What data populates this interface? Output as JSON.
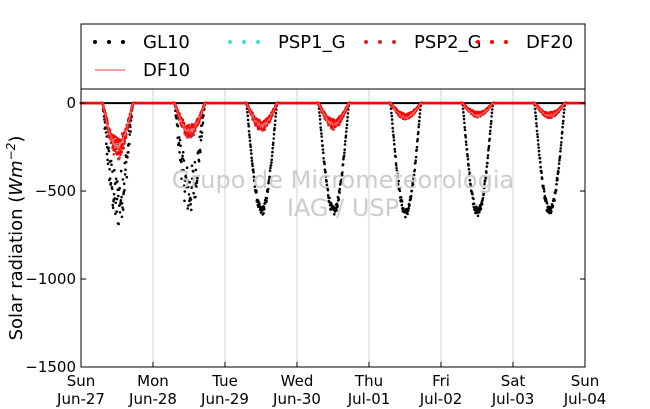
{
  "chart_data": {
    "type": "scatter",
    "title": "",
    "ylabel": "Solar radiation (Wm⁻²)",
    "ylabel_parts": {
      "prefix": "Solar radiation (",
      "unit_base": "Wm",
      "unit_exp": "−2",
      "suffix": ")"
    },
    "ylim": [
      -1500,
      80
    ],
    "yticks": [
      0,
      -500,
      -1000,
      -1500
    ],
    "ytick_labels": [
      "0",
      "−500",
      "−1000",
      "−1500"
    ],
    "xlim_days": [
      0,
      7
    ],
    "xticks": [
      {
        "day": 0,
        "line1": "Sun",
        "line2": "Jun-27"
      },
      {
        "day": 1,
        "line1": "Mon",
        "line2": "Jun-28"
      },
      {
        "day": 2,
        "line1": "Tue",
        "line2": "Jun-29"
      },
      {
        "day": 3,
        "line1": "Wed",
        "line2": "Jun-30"
      },
      {
        "day": 4,
        "line1": "Thu",
        "line2": "Jul-01"
      },
      {
        "day": 5,
        "line1": "Fri",
        "line2": "Jul-02"
      },
      {
        "day": 6,
        "line1": "Sat",
        "line2": "Jul-03"
      },
      {
        "day": 7,
        "line1": "Sun",
        "line2": "Jul-04"
      }
    ],
    "grid": "vertical",
    "legend_placement": "top",
    "watermark": [
      "Grupo de Micrometeorologia",
      "IAG / USP"
    ],
    "series": [
      {
        "name": "GL10",
        "color": "#000000",
        "marker": "dot",
        "daily_peak": [
          -720,
          -650,
          -640,
          -640,
          -650,
          -645,
          -640
        ]
      },
      {
        "name": "PSP1_G",
        "color": "#40e0d0",
        "marker": "dot",
        "daily_peak": [
          0,
          0,
          0,
          0,
          0,
          0,
          0
        ]
      },
      {
        "name": "PSP2_G",
        "color": "#d62728",
        "marker": "dot",
        "daily_peak": [
          -320,
          -200,
          -160,
          -150,
          -95,
          -80,
          -85
        ]
      },
      {
        "name": "DF20",
        "color": "#ff0000",
        "marker": "dot",
        "daily_peak": [
          -300,
          -190,
          -150,
          -140,
          -90,
          -75,
          -80
        ]
      },
      {
        "name": "DF10",
        "color": "#f08080",
        "marker": "line",
        "daily_peak": [
          -250,
          -160,
          -130,
          -120,
          -80,
          -70,
          -70
        ]
      }
    ]
  }
}
